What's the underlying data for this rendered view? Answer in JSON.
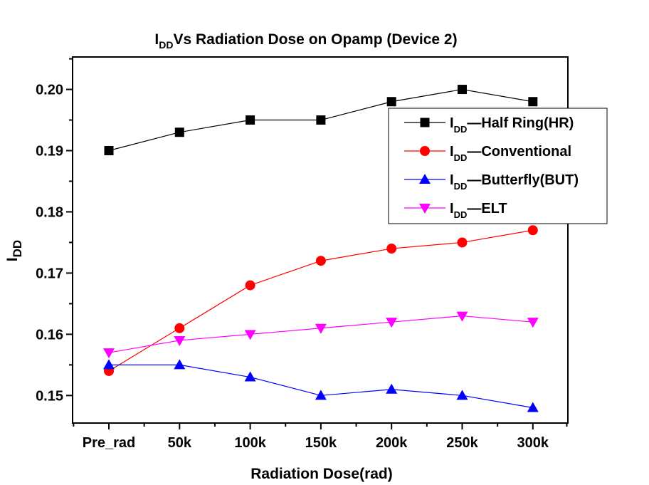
{
  "chart_data": {
    "type": "line",
    "title": {
      "main": "I",
      "sub": "DD",
      "rest": "Vs Radiation Dose on Opamp (Device 2)"
    },
    "xlabel": "Radiation Dose(rad)",
    "ylabel": {
      "main": "I",
      "sub": "DD"
    },
    "categories": [
      "Pre_rad",
      "50k",
      "100k",
      "150k",
      "200k",
      "250k",
      "300k"
    ],
    "ylim": [
      0.1455,
      0.2053
    ],
    "yticks": [
      "0.15",
      "0.16",
      "0.17",
      "0.18",
      "0.19",
      "0.20"
    ],
    "ytick_values": [
      0.15,
      0.16,
      0.17,
      0.18,
      0.19,
      0.2
    ],
    "grid": false,
    "legend_position": "top-right",
    "series": [
      {
        "name_main": "I",
        "name_sub": "DD",
        "name_rest": "Half Ring(HR)",
        "color": "#000000",
        "marker": "square",
        "values": [
          0.19,
          0.193,
          0.195,
          0.195,
          0.198,
          0.2,
          0.198
        ]
      },
      {
        "name_main": "I",
        "name_sub": "DD",
        "name_rest": "Conventional",
        "color": "#ff0000",
        "marker": "circle",
        "values": [
          0.154,
          0.161,
          0.168,
          0.172,
          0.174,
          0.175,
          0.177
        ]
      },
      {
        "name_main": "I",
        "name_sub": "DD",
        "name_rest": "Butterfly(BUT)",
        "color": "#0000ff",
        "marker": "triangle-up",
        "values": [
          0.155,
          0.155,
          0.153,
          0.15,
          0.151,
          0.15,
          0.148
        ]
      },
      {
        "name_main": "I",
        "name_sub": "DD",
        "name_rest": "ELT",
        "color": "#ff00ff",
        "marker": "triangle-down",
        "values": [
          0.157,
          0.159,
          0.16,
          0.161,
          0.162,
          0.163,
          0.162
        ]
      }
    ]
  }
}
